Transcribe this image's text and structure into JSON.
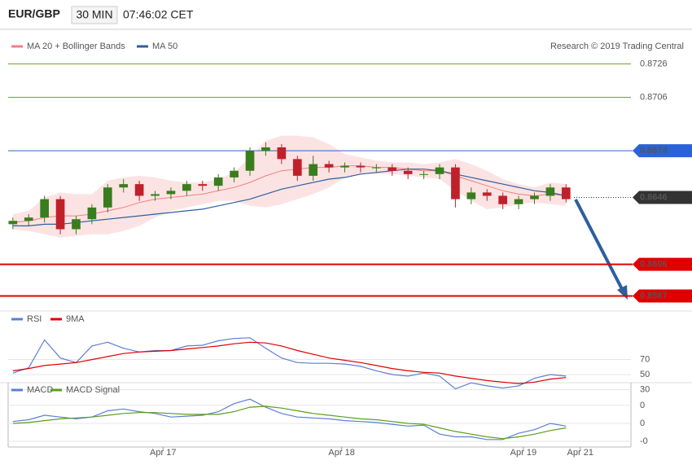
{
  "header": {
    "symbol": "EUR/GBP",
    "interval": "30 MIN",
    "time": "07:46:02 CET",
    "credit": "Research © 2019 Trading Central"
  },
  "chart_data": [
    {
      "type": "candlestick",
      "up_color": "#3a7d1e",
      "down_color": "#c0202a",
      "xlim": [
        -0.3,
        35.5
      ],
      "ylim": [
        0.8578,
        0.8735
      ],
      "open": [
        0.863,
        0.8632,
        0.8634,
        0.8645,
        0.8627,
        0.8633,
        0.864,
        0.8652,
        0.8654,
        0.8647,
        0.8648,
        0.865,
        0.8654,
        0.8653,
        0.8658,
        0.8662,
        0.8674,
        0.8676,
        0.8669,
        0.8659,
        0.8666,
        0.8664,
        0.8665,
        0.8664,
        0.8664,
        0.8662,
        0.866,
        0.866,
        0.8664,
        0.8645,
        0.8649,
        0.8647,
        0.8642,
        0.8645,
        0.8647,
        0.8652
      ],
      "high": [
        0.8634,
        0.8636,
        0.8647,
        0.8647,
        0.8635,
        0.8642,
        0.8654,
        0.8657,
        0.8656,
        0.865,
        0.8652,
        0.8656,
        0.8656,
        0.866,
        0.8664,
        0.8676,
        0.8679,
        0.8678,
        0.8671,
        0.8671,
        0.8668,
        0.8667,
        0.8667,
        0.8666,
        0.8666,
        0.8664,
        0.8662,
        0.8666,
        0.8666,
        0.8652,
        0.8651,
        0.8649,
        0.8647,
        0.8649,
        0.8654,
        0.8654
      ],
      "low": [
        0.8627,
        0.8629,
        0.8631,
        0.8624,
        0.8624,
        0.863,
        0.8637,
        0.8649,
        0.8644,
        0.8644,
        0.8645,
        0.8647,
        0.865,
        0.865,
        0.8655,
        0.8659,
        0.8671,
        0.8666,
        0.8656,
        0.8656,
        0.8661,
        0.8661,
        0.8661,
        0.8661,
        0.8659,
        0.8657,
        0.8657,
        0.8657,
        0.864,
        0.8642,
        0.8644,
        0.8639,
        0.8639,
        0.8642,
        0.8644,
        0.8643
      ],
      "close": [
        0.8632,
        0.8634,
        0.8645,
        0.8627,
        0.8633,
        0.864,
        0.8652,
        0.8654,
        0.8647,
        0.8648,
        0.865,
        0.8654,
        0.8653,
        0.8658,
        0.8662,
        0.8674,
        0.8676,
        0.8669,
        0.8659,
        0.8666,
        0.8664,
        0.8665,
        0.8664,
        0.8664,
        0.8662,
        0.866,
        0.866,
        0.8664,
        0.8645,
        0.8649,
        0.8647,
        0.8642,
        0.8645,
        0.8647,
        0.8652,
        0.8645
      ],
      "overlays": [
        {
          "name": "MA 20 + Bollinger Bands",
          "color": "#f08080",
          "values": [
            0.8631,
            0.8632,
            0.8634,
            0.8635,
            0.8635,
            0.8636,
            0.8638,
            0.864,
            0.8643,
            0.8645,
            0.8646,
            0.8647,
            0.8648,
            0.865,
            0.8652,
            0.8655,
            0.8659,
            0.8662,
            0.8663,
            0.8664,
            0.8664,
            0.8665,
            0.8665,
            0.8664,
            0.8664,
            0.8663,
            0.8662,
            0.8662,
            0.8659,
            0.8656,
            0.8653,
            0.865,
            0.8648,
            0.8647,
            0.8648,
            0.8647
          ],
          "upper": [
            0.8636,
            0.8638,
            0.8646,
            0.8649,
            0.8648,
            0.8648,
            0.8656,
            0.8658,
            0.8659,
            0.8658,
            0.8656,
            0.8655,
            0.8655,
            0.8657,
            0.8661,
            0.867,
            0.868,
            0.8683,
            0.8683,
            0.8682,
            0.8678,
            0.8672,
            0.867,
            0.8668,
            0.8667,
            0.8667,
            0.8666,
            0.8667,
            0.8669,
            0.8666,
            0.8662,
            0.8657,
            0.8654,
            0.8652,
            0.8655,
            0.8654
          ],
          "lower": [
            0.8627,
            0.8626,
            0.8624,
            0.8622,
            0.8623,
            0.8624,
            0.8624,
            0.8626,
            0.8629,
            0.8634,
            0.8638,
            0.864,
            0.8642,
            0.8644,
            0.8644,
            0.8641,
            0.864,
            0.8642,
            0.8645,
            0.8648,
            0.8652,
            0.8658,
            0.866,
            0.866,
            0.866,
            0.8659,
            0.8658,
            0.8657,
            0.865,
            0.8644,
            0.8639,
            0.864,
            0.8642,
            0.8643,
            0.8642,
            0.8641
          ]
        },
        {
          "name": "MA 50",
          "color": "#2d5f9e",
          "values": [
            0.8629,
            0.8629,
            0.863,
            0.863,
            0.8631,
            0.8632,
            0.8633,
            0.8634,
            0.8635,
            0.8636,
            0.8637,
            0.8638,
            0.8639,
            0.8641,
            0.8643,
            0.8645,
            0.8648,
            0.8651,
            0.8653,
            0.8655,
            0.8657,
            0.8658,
            0.866,
            0.8661,
            0.8662,
            0.8663,
            0.8663,
            0.8662,
            0.866,
            0.8658,
            0.8656,
            0.8654,
            0.8652,
            0.865,
            0.8649,
            0.8647
          ]
        }
      ],
      "levels": [
        {
          "value": 0.8726,
          "color": "#6aaa1e",
          "tag": false,
          "style": "solid"
        },
        {
          "value": 0.8706,
          "color": "#6aaa1e",
          "tag": false,
          "style": "solid"
        },
        {
          "value": 0.8674,
          "color": "#2a62d8",
          "tag": true,
          "style": "solid"
        },
        {
          "value": 0.8646,
          "color": "#333333",
          "tag": true,
          "style": "dotted"
        },
        {
          "value": 0.8606,
          "color": "#e00000",
          "tag": true,
          "style": "solid"
        },
        {
          "value": 0.8587,
          "color": "#e00000",
          "tag": true,
          "style": "solid"
        }
      ]
    },
    {
      "type": "line",
      "xlim": [
        -0.3,
        35.5
      ],
      "ylim": [
        17,
        115
      ],
      "yticks": [
        30,
        50,
        70
      ],
      "grid": true,
      "series": [
        {
          "name": "RSI",
          "color": "#5b7fd6",
          "values": [
            52,
            59,
            96,
            72,
            66,
            88,
            93,
            85,
            80,
            82,
            82,
            88,
            89,
            95,
            98,
            99,
            85,
            72,
            66,
            65,
            65,
            64,
            61,
            55,
            50,
            48,
            52,
            48,
            31,
            39,
            35,
            32,
            35,
            45,
            50,
            48
          ]
        },
        {
          "name": "9MA",
          "color": "#e00000",
          "values": [
            55,
            58,
            62,
            64,
            66,
            70,
            74,
            78,
            80,
            81,
            82,
            84,
            86,
            88,
            91,
            93,
            92,
            88,
            82,
            77,
            72,
            69,
            66,
            62,
            58,
            55,
            53,
            52,
            48,
            45,
            42,
            40,
            38,
            40,
            44,
            46
          ]
        }
      ]
    },
    {
      "type": "line",
      "xlim": [
        -0.3,
        35.5
      ],
      "ylim": [
        -0.00026,
        0.00029
      ],
      "yticks": [
        {
          "value": 0.0002,
          "label": "0"
        },
        {
          "value": 0,
          "label": "0"
        },
        {
          "value": -0.0002,
          "label": "-0"
        }
      ],
      "grid": true,
      "xticks": [
        {
          "value": 9.5,
          "label": "Apr 17"
        },
        {
          "value": 20.8,
          "label": "Apr 18"
        },
        {
          "value": 32.3,
          "label": "Apr 19"
        },
        {
          "value": 35.9,
          "label": "Apr 21"
        }
      ],
      "series": [
        {
          "name": "MACD",
          "color": "#5b7fd6",
          "values": [
            2e-05,
            4e-05,
            9e-05,
            7e-05,
            5e-05,
            7e-05,
            0.00014,
            0.00016,
            0.00013,
            0.00011,
            7e-05,
            8e-05,
            9e-05,
            0.00013,
            0.00022,
            0.00027,
            0.00018,
            0.00011,
            7e-05,
            6e-05,
            5e-05,
            3e-05,
            2e-05,
            1e-05,
            -1e-05,
            -3e-05,
            -2e-05,
            -0.00012,
            -0.00015,
            -0.00015,
            -0.00018,
            -0.00018,
            -0.00011,
            -7e-05,
            0,
            -3e-05
          ]
        },
        {
          "name": "MACD Signal",
          "color": "#5a9e1a",
          "values": [
            0,
            1e-05,
            3e-05,
            5e-05,
            6e-05,
            7e-05,
            9e-05,
            0.00011,
            0.00012,
            0.00012,
            0.00011,
            0.0001,
            0.0001,
            0.0001,
            0.00013,
            0.00018,
            0.00019,
            0.00017,
            0.00014,
            0.00011,
            9e-05,
            7e-05,
            5e-05,
            4e-05,
            2e-05,
            0,
            -1e-05,
            -5e-05,
            -9e-05,
            -0.00012,
            -0.00015,
            -0.00017,
            -0.00015,
            -0.00012,
            -8e-05,
            -5e-05
          ]
        }
      ]
    }
  ]
}
